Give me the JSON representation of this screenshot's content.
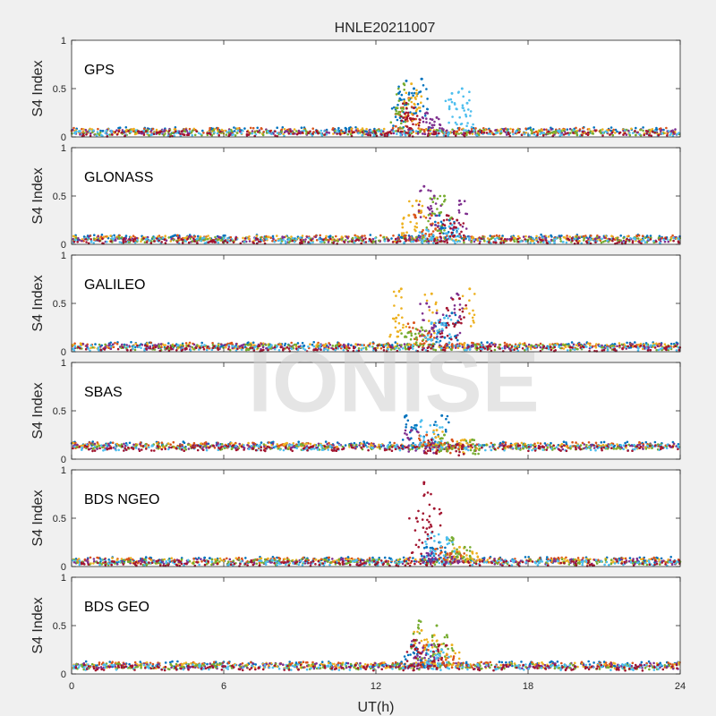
{
  "figure": {
    "title": "HNLE20211007",
    "xlabel": "UT(h)",
    "watermark": "IONISE"
  },
  "colors": [
    "#0072BD",
    "#D95319",
    "#EDB120",
    "#7E2F8E",
    "#77AC30",
    "#4DBEEE",
    "#A2142F"
  ],
  "chart_data": [
    {
      "type": "scatter",
      "label": "GPS",
      "ylabel": "S4 Index",
      "xlim": [
        0,
        24
      ],
      "ylim": [
        0,
        1
      ],
      "yticks": [
        0,
        0.5,
        1
      ],
      "xticks": [
        0,
        6,
        12,
        18,
        24
      ],
      "baseline": 0.07,
      "series": [
        {
          "values": [
            [
              12.9,
              0.45
            ],
            [
              13.2,
              0.58
            ],
            [
              13.5,
              0.5
            ],
            [
              13.8,
              0.6
            ]
          ]
        },
        {
          "values": [
            [
              13.0,
              0.3
            ],
            [
              13.3,
              0.4
            ]
          ]
        },
        {
          "values": [
            [
              13.4,
              0.55
            ],
            [
              13.6,
              0.45
            ]
          ]
        },
        {
          "values": [
            [
              14.0,
              0.25
            ],
            [
              14.4,
              0.2
            ]
          ]
        },
        {
          "values": [
            [
              12.8,
              0.3
            ],
            [
              13.1,
              0.55
            ]
          ]
        },
        {
          "values": [
            [
              15.0,
              0.45
            ],
            [
              15.4,
              0.5
            ],
            [
              15.6,
              0.35
            ]
          ]
        },
        {
          "values": [
            [
              13.2,
              0.35
            ],
            [
              13.5,
              0.3
            ]
          ]
        }
      ]
    },
    {
      "type": "scatter",
      "label": "GLONASS",
      "ylabel": "S4 Index",
      "xlim": [
        0,
        24
      ],
      "ylim": [
        0,
        1
      ],
      "yticks": [
        0,
        0.5,
        1
      ],
      "xticks": [
        0,
        6,
        12,
        18,
        24
      ],
      "baseline": 0.07,
      "series": [
        {
          "values": [
            [
              14.5,
              0.3
            ],
            [
              14.9,
              0.25
            ]
          ]
        },
        {
          "values": [
            [
              13.7,
              0.35
            ],
            [
              14.2,
              0.3
            ]
          ]
        },
        {
          "values": [
            [
              13.3,
              0.3
            ],
            [
              13.6,
              0.45
            ]
          ]
        },
        {
          "values": [
            [
              13.9,
              0.6
            ],
            [
              14.3,
              0.5
            ],
            [
              15.3,
              0.45
            ]
          ]
        },
        {
          "values": [
            [
              14.3,
              0.48
            ],
            [
              14.7,
              0.5
            ]
          ]
        },
        {
          "values": [
            [
              14.0,
              0.15
            ],
            [
              15.0,
              0.2
            ]
          ]
        },
        {
          "values": [
            [
              14.8,
              0.3
            ],
            [
              15.2,
              0.25
            ]
          ]
        }
      ]
    },
    {
      "type": "scatter",
      "label": "GALILEO",
      "ylabel": "S4 Index",
      "xlim": [
        0,
        24
      ],
      "ylim": [
        0,
        1
      ],
      "yticks": [
        0,
        0.5,
        1
      ],
      "xticks": [
        0,
        6,
        12,
        18,
        24
      ],
      "baseline": 0.07,
      "series": [
        {
          "values": [
            [
              14.5,
              0.3
            ],
            [
              15.0,
              0.4
            ]
          ]
        },
        {
          "values": [
            [
              13.5,
              0.3
            ],
            [
              14.1,
              0.2
            ]
          ]
        },
        {
          "values": [
            [
              12.8,
              0.35
            ],
            [
              13.0,
              0.65
            ],
            [
              14.2,
              0.6
            ],
            [
              15.7,
              0.65
            ]
          ]
        },
        {
          "values": [
            [
              14.0,
              0.5
            ],
            [
              14.4,
              0.4
            ],
            [
              15.2,
              0.6
            ]
          ]
        },
        {
          "values": [
            [
              13.3,
              0.2
            ],
            [
              13.8,
              0.25
            ]
          ]
        },
        {
          "values": [
            [
              14.2,
              0.3
            ],
            [
              14.7,
              0.35
            ]
          ]
        },
        {
          "values": [
            [
              14.8,
              0.45
            ],
            [
              15.3,
              0.55
            ]
          ]
        }
      ]
    },
    {
      "type": "scatter",
      "label": "SBAS",
      "ylabel": "S4 Index",
      "xlim": [
        0,
        24
      ],
      "ylim": [
        0,
        1
      ],
      "yticks": [
        0,
        0.5,
        1
      ],
      "xticks": [
        0,
        6,
        12,
        18,
        24
      ],
      "baseline": 0.15,
      "series": [
        {
          "values": [
            [
              13.2,
              0.45
            ],
            [
              13.6,
              0.35
            ],
            [
              14.6,
              0.45
            ]
          ]
        },
        {
          "values": [
            [
              14.0,
              0.25
            ],
            [
              15.0,
              0.2
            ]
          ]
        },
        {
          "values": [
            [
              14.4,
              0.3
            ],
            [
              15.5,
              0.2
            ]
          ]
        },
        {
          "values": [
            [
              13.4,
              0.3
            ],
            [
              14.2,
              0.2
            ]
          ]
        },
        {
          "values": [
            [
              14.7,
              0.25
            ],
            [
              15.8,
              0.2
            ]
          ]
        },
        {
          "values": [
            [
              13.8,
              0.4
            ],
            [
              14.4,
              0.35
            ]
          ]
        },
        {
          "values": [
            [
              14.2,
              0.2
            ],
            [
              15.2,
              0.15
            ]
          ]
        }
      ]
    },
    {
      "type": "scatter",
      "label": "BDS NGEO",
      "ylabel": "S4 Index",
      "xlim": [
        0,
        24
      ],
      "ylim": [
        0,
        1
      ],
      "yticks": [
        0,
        0.5,
        1
      ],
      "xticks": [
        0,
        6,
        12,
        18,
        24
      ],
      "baseline": 0.07,
      "series": [
        {
          "values": [
            [
              14.0,
              0.2
            ],
            [
              14.5,
              0.25
            ]
          ]
        },
        {
          "values": [
            [
              14.6,
              0.2
            ],
            [
              15.2,
              0.15
            ]
          ]
        },
        {
          "values": [
            [
              15.3,
              0.2
            ],
            [
              15.8,
              0.15
            ]
          ]
        },
        {
          "values": [
            [
              14.2,
              0.15
            ],
            [
              15.0,
              0.1
            ]
          ]
        },
        {
          "values": [
            [
              15.0,
              0.3
            ],
            [
              15.5,
              0.2
            ]
          ]
        },
        {
          "values": [
            [
              14.2,
              0.35
            ],
            [
              14.8,
              0.3
            ]
          ]
        },
        {
          "values": [
            [
              13.6,
              0.5
            ],
            [
              13.9,
              0.87
            ],
            [
              14.3,
              0.6
            ]
          ]
        }
      ]
    },
    {
      "type": "scatter",
      "label": "BDS GEO",
      "ylabel": "S4 Index",
      "xlim": [
        0,
        24
      ],
      "ylim": [
        0,
        1
      ],
      "yticks": [
        0,
        0.5,
        1
      ],
      "xticks": [
        0,
        6,
        12,
        18,
        24
      ],
      "baseline": 0.1,
      "series": [
        {
          "values": [
            [
              13.4,
              0.3
            ],
            [
              14.0,
              0.25
            ]
          ]
        },
        {
          "values": [
            [
              14.0,
              0.3
            ],
            [
              14.8,
              0.2
            ]
          ]
        },
        {
          "values": [
            [
              13.8,
              0.45
            ],
            [
              14.3,
              0.4
            ],
            [
              15.0,
              0.3
            ]
          ]
        },
        {
          "values": [
            [
              13.6,
              0.35
            ],
            [
              14.2,
              0.3
            ]
          ]
        },
        {
          "values": [
            [
              13.7,
              0.55
            ],
            [
              14.4,
              0.5
            ],
            [
              14.8,
              0.4
            ]
          ]
        },
        {
          "values": [
            [
              14.1,
              0.3
            ],
            [
              14.6,
              0.25
            ]
          ]
        },
        {
          "values": [
            [
              13.5,
              0.35
            ],
            [
              14.5,
              0.3
            ]
          ]
        }
      ]
    }
  ]
}
